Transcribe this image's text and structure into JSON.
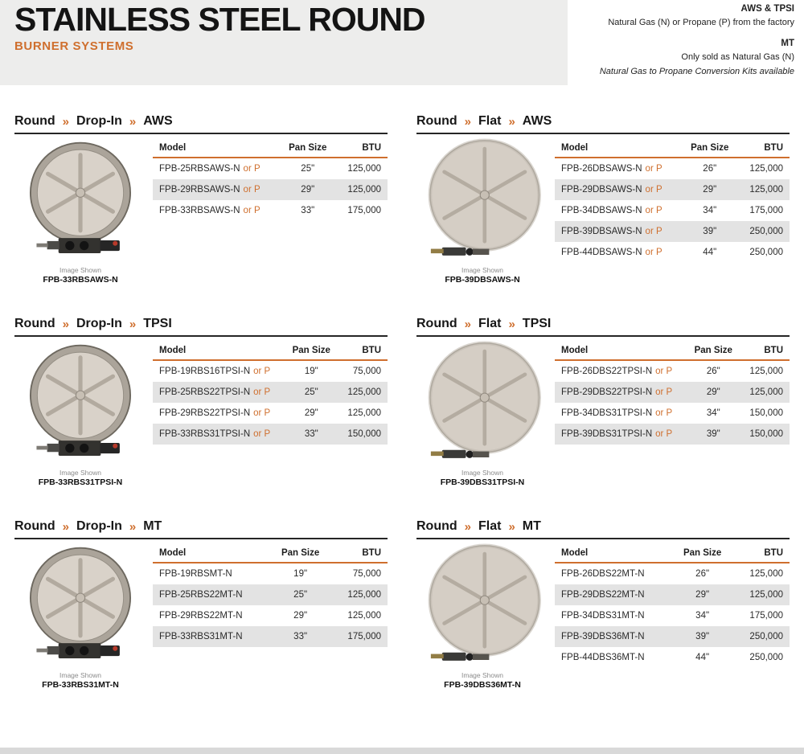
{
  "page": {
    "title": "STAINLESS STEEL ROUND",
    "subtitle": "BURNER SYSTEMS"
  },
  "factory_notes": {
    "aws_tpsi_label": "AWS & TPSI",
    "aws_tpsi_text": "Natural Gas (N) or Propane (P) from the factory",
    "mt_label": "MT",
    "mt_text": "Only sold as Natural Gas (N)",
    "conversion_note": "Natural Gas to Propane Conversion Kits available"
  },
  "table_columns": {
    "model": "Model",
    "pan_size": "Pan Size",
    "btu": "BTU"
  },
  "image_shown_label": "Image Shown",
  "colors": {
    "accent": "#cf6f2e",
    "row_alt": "#e3e3e3"
  },
  "sections": [
    {
      "breadcrumb": [
        "Round",
        "Drop-In",
        "AWS"
      ],
      "image_type": "drop-in",
      "image_shown_model": "FPB-33RBSAWS-N",
      "rows": [
        {
          "model": "FPB-25RBSAWS-N",
          "or_p": "or P",
          "pan_size": "25\"",
          "btu": "125,000"
        },
        {
          "model": "FPB-29RBSAWS-N",
          "or_p": "or P",
          "pan_size": "29\"",
          "btu": "125,000"
        },
        {
          "model": "FPB-33RBSAWS-N",
          "or_p": "or P",
          "pan_size": "33\"",
          "btu": "175,000"
        }
      ]
    },
    {
      "breadcrumb": [
        "Round",
        "Flat",
        "AWS"
      ],
      "image_type": "flat",
      "image_shown_model": "FPB-39DBSAWS-N",
      "rows": [
        {
          "model": "FPB-26DBSAWS-N",
          "or_p": "or P",
          "pan_size": "26\"",
          "btu": "125,000"
        },
        {
          "model": "FPB-29DBSAWS-N",
          "or_p": "or P",
          "pan_size": "29\"",
          "btu": "125,000"
        },
        {
          "model": "FPB-34DBSAWS-N",
          "or_p": "or P",
          "pan_size": "34\"",
          "btu": "175,000"
        },
        {
          "model": "FPB-39DBSAWS-N",
          "or_p": "or P",
          "pan_size": "39\"",
          "btu": "250,000"
        },
        {
          "model": "FPB-44DBSAWS-N",
          "or_p": "or P",
          "pan_size": "44\"",
          "btu": "250,000"
        }
      ]
    },
    {
      "breadcrumb": [
        "Round",
        "Drop-In",
        "TPSI"
      ],
      "image_type": "drop-in",
      "image_shown_model": "FPB-33RBS31TPSI-N",
      "rows": [
        {
          "model": "FPB-19RBS16TPSI-N",
          "or_p": "or P",
          "pan_size": "19\"",
          "btu": "75,000"
        },
        {
          "model": "FPB-25RBS22TPSI-N",
          "or_p": "or P",
          "pan_size": "25\"",
          "btu": "125,000"
        },
        {
          "model": "FPB-29RBS22TPSI-N",
          "or_p": "or P",
          "pan_size": "29\"",
          "btu": "125,000"
        },
        {
          "model": "FPB-33RBS31TPSI-N",
          "or_p": "or P",
          "pan_size": "33\"",
          "btu": "150,000"
        }
      ]
    },
    {
      "breadcrumb": [
        "Round",
        "Flat",
        "TPSI"
      ],
      "image_type": "flat",
      "image_shown_model": "FPB-39DBS31TPSI-N",
      "rows": [
        {
          "model": "FPB-26DBS22TPSI-N",
          "or_p": "or P",
          "pan_size": "26\"",
          "btu": "125,000"
        },
        {
          "model": "FPB-29DBS22TPSI-N",
          "or_p": "or P",
          "pan_size": "29\"",
          "btu": "125,000"
        },
        {
          "model": "FPB-34DBS31TPSI-N",
          "or_p": "or P",
          "pan_size": "34\"",
          "btu": "150,000"
        },
        {
          "model": "FPB-39DBS31TPSI-N",
          "or_p": "or P",
          "pan_size": "39\"",
          "btu": "150,000"
        }
      ]
    },
    {
      "breadcrumb": [
        "Round",
        "Drop-In",
        "MT"
      ],
      "image_type": "drop-in",
      "image_shown_model": "FPB-33RBS31MT-N",
      "rows": [
        {
          "model": "FPB-19RBSMT-N",
          "pan_size": "19\"",
          "btu": "75,000"
        },
        {
          "model": "FPB-25RBS22MT-N",
          "pan_size": "25\"",
          "btu": "125,000"
        },
        {
          "model": "FPB-29RBS22MT-N",
          "pan_size": "29\"",
          "btu": "125,000"
        },
        {
          "model": "FPB-33RBS31MT-N",
          "pan_size": "33\"",
          "btu": "175,000"
        }
      ]
    },
    {
      "breadcrumb": [
        "Round",
        "Flat",
        "MT"
      ],
      "image_type": "flat",
      "image_shown_model": "FPB-39DBS36MT-N",
      "rows": [
        {
          "model": "FPB-26DBS22MT-N",
          "pan_size": "26\"",
          "btu": "125,000"
        },
        {
          "model": "FPB-29DBS22MT-N",
          "pan_size": "29\"",
          "btu": "125,000"
        },
        {
          "model": "FPB-34DBS31MT-N",
          "pan_size": "34\"",
          "btu": "175,000"
        },
        {
          "model": "FPB-39DBS36MT-N",
          "pan_size": "39\"",
          "btu": "250,000"
        },
        {
          "model": "FPB-44DBS36MT-N",
          "pan_size": "44\"",
          "btu": "250,000"
        }
      ]
    }
  ]
}
